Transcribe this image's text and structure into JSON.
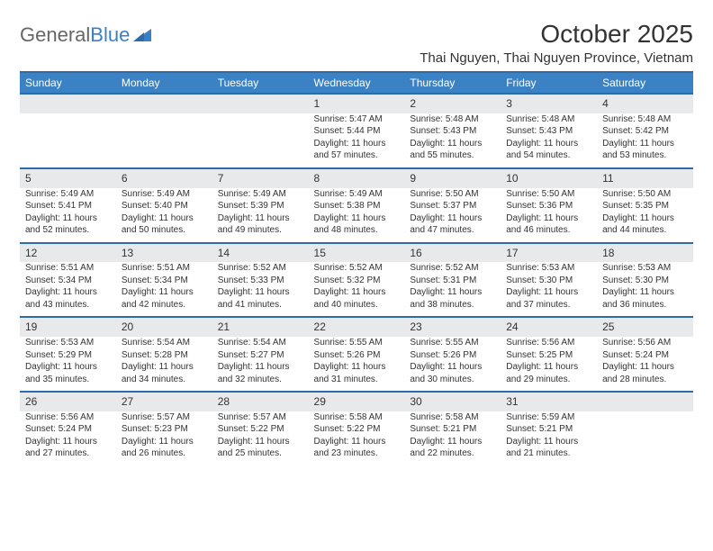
{
  "brand": {
    "part1": "General",
    "part2": "Blue"
  },
  "title": "October 2025",
  "location": "Thai Nguyen, Thai Nguyen Province, Vietnam",
  "weekdays": [
    "Sunday",
    "Monday",
    "Tuesday",
    "Wednesday",
    "Thursday",
    "Friday",
    "Saturday"
  ],
  "colors": {
    "header_bg": "#3b82c4",
    "header_text": "#ffffff",
    "rule": "#2e6ca8",
    "daynum_bg": "#e8e9ea",
    "body_text": "#333333",
    "logo_gray": "#666666",
    "logo_blue": "#3b7fc4"
  },
  "weeks": [
    [
      null,
      null,
      null,
      {
        "n": "1",
        "sunrise": "5:47 AM",
        "sunset": "5:44 PM",
        "daylight": "11 hours and 57 minutes."
      },
      {
        "n": "2",
        "sunrise": "5:48 AM",
        "sunset": "5:43 PM",
        "daylight": "11 hours and 55 minutes."
      },
      {
        "n": "3",
        "sunrise": "5:48 AM",
        "sunset": "5:43 PM",
        "daylight": "11 hours and 54 minutes."
      },
      {
        "n": "4",
        "sunrise": "5:48 AM",
        "sunset": "5:42 PM",
        "daylight": "11 hours and 53 minutes."
      }
    ],
    [
      {
        "n": "5",
        "sunrise": "5:49 AM",
        "sunset": "5:41 PM",
        "daylight": "11 hours and 52 minutes."
      },
      {
        "n": "6",
        "sunrise": "5:49 AM",
        "sunset": "5:40 PM",
        "daylight": "11 hours and 50 minutes."
      },
      {
        "n": "7",
        "sunrise": "5:49 AM",
        "sunset": "5:39 PM",
        "daylight": "11 hours and 49 minutes."
      },
      {
        "n": "8",
        "sunrise": "5:49 AM",
        "sunset": "5:38 PM",
        "daylight": "11 hours and 48 minutes."
      },
      {
        "n": "9",
        "sunrise": "5:50 AM",
        "sunset": "5:37 PM",
        "daylight": "11 hours and 47 minutes."
      },
      {
        "n": "10",
        "sunrise": "5:50 AM",
        "sunset": "5:36 PM",
        "daylight": "11 hours and 46 minutes."
      },
      {
        "n": "11",
        "sunrise": "5:50 AM",
        "sunset": "5:35 PM",
        "daylight": "11 hours and 44 minutes."
      }
    ],
    [
      {
        "n": "12",
        "sunrise": "5:51 AM",
        "sunset": "5:34 PM",
        "daylight": "11 hours and 43 minutes."
      },
      {
        "n": "13",
        "sunrise": "5:51 AM",
        "sunset": "5:34 PM",
        "daylight": "11 hours and 42 minutes."
      },
      {
        "n": "14",
        "sunrise": "5:52 AM",
        "sunset": "5:33 PM",
        "daylight": "11 hours and 41 minutes."
      },
      {
        "n": "15",
        "sunrise": "5:52 AM",
        "sunset": "5:32 PM",
        "daylight": "11 hours and 40 minutes."
      },
      {
        "n": "16",
        "sunrise": "5:52 AM",
        "sunset": "5:31 PM",
        "daylight": "11 hours and 38 minutes."
      },
      {
        "n": "17",
        "sunrise": "5:53 AM",
        "sunset": "5:30 PM",
        "daylight": "11 hours and 37 minutes."
      },
      {
        "n": "18",
        "sunrise": "5:53 AM",
        "sunset": "5:30 PM",
        "daylight": "11 hours and 36 minutes."
      }
    ],
    [
      {
        "n": "19",
        "sunrise": "5:53 AM",
        "sunset": "5:29 PM",
        "daylight": "11 hours and 35 minutes."
      },
      {
        "n": "20",
        "sunrise": "5:54 AM",
        "sunset": "5:28 PM",
        "daylight": "11 hours and 34 minutes."
      },
      {
        "n": "21",
        "sunrise": "5:54 AM",
        "sunset": "5:27 PM",
        "daylight": "11 hours and 32 minutes."
      },
      {
        "n": "22",
        "sunrise": "5:55 AM",
        "sunset": "5:26 PM",
        "daylight": "11 hours and 31 minutes."
      },
      {
        "n": "23",
        "sunrise": "5:55 AM",
        "sunset": "5:26 PM",
        "daylight": "11 hours and 30 minutes."
      },
      {
        "n": "24",
        "sunrise": "5:56 AM",
        "sunset": "5:25 PM",
        "daylight": "11 hours and 29 minutes."
      },
      {
        "n": "25",
        "sunrise": "5:56 AM",
        "sunset": "5:24 PM",
        "daylight": "11 hours and 28 minutes."
      }
    ],
    [
      {
        "n": "26",
        "sunrise": "5:56 AM",
        "sunset": "5:24 PM",
        "daylight": "11 hours and 27 minutes."
      },
      {
        "n": "27",
        "sunrise": "5:57 AM",
        "sunset": "5:23 PM",
        "daylight": "11 hours and 26 minutes."
      },
      {
        "n": "28",
        "sunrise": "5:57 AM",
        "sunset": "5:22 PM",
        "daylight": "11 hours and 25 minutes."
      },
      {
        "n": "29",
        "sunrise": "5:58 AM",
        "sunset": "5:22 PM",
        "daylight": "11 hours and 23 minutes."
      },
      {
        "n": "30",
        "sunrise": "5:58 AM",
        "sunset": "5:21 PM",
        "daylight": "11 hours and 22 minutes."
      },
      {
        "n": "31",
        "sunrise": "5:59 AM",
        "sunset": "5:21 PM",
        "daylight": "11 hours and 21 minutes."
      },
      null
    ]
  ],
  "labels": {
    "sunrise": "Sunrise: ",
    "sunset": "Sunset: ",
    "daylight": "Daylight: "
  }
}
